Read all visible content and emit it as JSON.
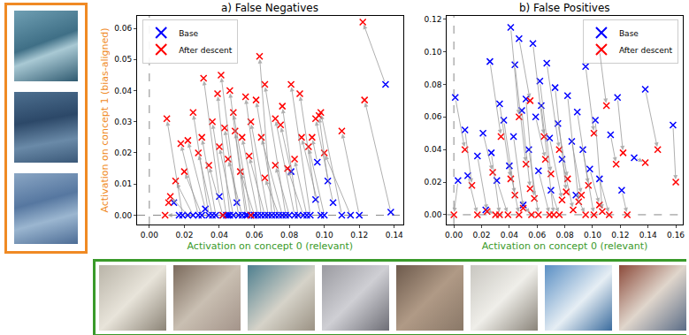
{
  "chart_data": [
    {
      "type": "scatter",
      "title": "a) False Negatives",
      "x_label": "Activation on concept 0 (relevant)",
      "y_label": "Activation on concept 1 (bias-aligned)",
      "xlim": [
        -0.007,
        0.145
      ],
      "ylim": [
        -0.003,
        0.064
      ],
      "xticks": [
        {
          "value": 0,
          "label": "0.00"
        },
        {
          "value": 0.02,
          "label": "0.02"
        },
        {
          "value": 0.04,
          "label": "0.04"
        },
        {
          "value": 0.06,
          "label": "0.06"
        },
        {
          "value": 0.08,
          "label": "0.08"
        },
        {
          "value": 0.1,
          "label": "0.10"
        },
        {
          "value": 0.12,
          "label": "0.12"
        },
        0.14
      ],
      "yticks": [
        {
          "value": 0,
          "label": "0.00"
        },
        0.01,
        0.02,
        0.03,
        0.04,
        0.05,
        0.06
      ],
      "grid": false,
      "legend": "upper left",
      "reference_lines": {
        "x": 0,
        "y": 0
      },
      "series": [
        {
          "name": "Base",
          "color": "#0000ff",
          "marker": "x",
          "x": [
            0.135,
            0.138,
            0.12,
            0.115,
            0.11,
            0.105,
            0.102,
            0.1,
            0.098,
            0.095,
            0.092,
            0.09,
            0.088,
            0.085,
            0.083,
            0.081,
            0.08,
            0.078,
            0.076,
            0.074,
            0.072,
            0.07,
            0.068,
            0.066,
            0.064,
            0.062,
            0.06,
            0.058,
            0.056,
            0.055,
            0.053,
            0.051,
            0.05,
            0.048,
            0.046,
            0.044,
            0.042,
            0.04,
            0.038,
            0.036,
            0.034,
            0.032,
            0.03,
            0.028,
            0.025,
            0.022,
            0.019,
            0.017,
            0.014,
            0.045,
            0.06,
            0.096
          ],
          "y": [
            0.042,
            0.001,
            0,
            0,
            0,
            0.004,
            0.011,
            0,
            0,
            0.005,
            0,
            0,
            0,
            0,
            0,
            0.014,
            0,
            0,
            0,
            0,
            0,
            0,
            0,
            0,
            0,
            0,
            0,
            0,
            0,
            0,
            0,
            0,
            0.004,
            0,
            0,
            0,
            0,
            0.006,
            0,
            0,
            0,
            0.002,
            0,
            0,
            0,
            0,
            0,
            0,
            0.004,
            0,
            0,
            0.017
          ]
        },
        {
          "name": "After descent",
          "color": "#ff0000",
          "marker": "x",
          "x": [
            0.122,
            0.123,
            0.11,
            0.1,
            0.098,
            0.095,
            0.097,
            0.091,
            0.087,
            0.086,
            0.081,
            0.083,
            0.079,
            0.076,
            0.072,
            0.075,
            0.072,
            0.066,
            0.064,
            0.066,
            0.061,
            0.063,
            0.058,
            0.057,
            0.055,
            0.053,
            0.052,
            0.048,
            0.049,
            0.046,
            0.045,
            0.043,
            0.041,
            0.04,
            0.039,
            0.036,
            0.034,
            0.031,
            0.03,
            0.028,
            0.025,
            0.022,
            0.02,
            0.018,
            0.015,
            0.012,
            0.01,
            0.009,
            0.011,
            0.042,
            0.058,
            0.093
          ],
          "y": [
            0.062,
            0.037,
            0.027,
            0.02,
            0.033,
            0.031,
            0.032,
            0.022,
            0.025,
            0.039,
            0.042,
            0.018,
            0.015,
            0.035,
            0.031,
            0.029,
            0.016,
            0.042,
            0.025,
            0.012,
            0.037,
            0.051,
            0.03,
            0.019,
            0.038,
            0.025,
            0.014,
            0.033,
            0.027,
            0.04,
            0.018,
            0.028,
            0.045,
            0.022,
            0.039,
            0.03,
            0.016,
            0.044,
            0.025,
            0.02,
            0.033,
            0.024,
            0.014,
            0.023,
            0.011,
            0.006,
            0.031,
            0,
            0.004,
            0,
            0,
            0.025
          ]
        }
      ]
    },
    {
      "type": "scatter",
      "title": "b) False Positives",
      "x_label": "Activation on concept 0 (relevant)",
      "xlim": [
        -0.005,
        0.165
      ],
      "ylim": [
        -0.006,
        0.122
      ],
      "xticks": [
        {
          "value": 0,
          "label": "0.00"
        },
        {
          "value": 0.02,
          "label": "0.02"
        },
        {
          "value": 0.04,
          "label": "0.04"
        },
        {
          "value": 0.06,
          "label": "0.06"
        },
        {
          "value": 0.08,
          "label": "0.08"
        },
        {
          "value": 0.1,
          "label": "0.10"
        },
        {
          "value": 0.12,
          "label": "0.12"
        },
        0.14,
        0.16
      ],
      "yticks": [
        {
          "value": 0,
          "label": "0.00"
        },
        0.02,
        0.04,
        0.06,
        0.08,
        {
          "value": 0.1,
          "label": "0.10"
        },
        0.12
      ],
      "grid": false,
      "legend": "upper right",
      "reference_lines": {
        "x": 0,
        "y": 0
      },
      "series": [
        {
          "name": "Base",
          "color": "#0000ff",
          "marker": "x",
          "x": [
            0.041,
            0.057,
            0.047,
            0.026,
            0.044,
            0.067,
            0.105,
            0.095,
            0.001,
            0.062,
            0.073,
            0.138,
            0.118,
            0.082,
            0.052,
            0.033,
            0.063,
            0.049,
            0.089,
            0.102,
            0.059,
            0.036,
            0.075,
            0.158,
            0.008,
            0.021,
            0.043,
            0.069,
            0.085,
            0.113,
            0.13,
            0.027,
            0.054,
            0.093,
            0.017,
            0.078,
            0.04,
            0.061,
            0.105,
            0.003,
            0.031,
            0.01,
            0.07,
            0.121,
            0.088,
            0.05,
            0.023,
            0.098
          ],
          "y": [
            0.115,
            0.105,
            0.108,
            0.094,
            0.092,
            0.093,
            0.101,
            0.091,
            0.072,
            0.082,
            0.078,
            0.077,
            0.072,
            0.073,
            0.071,
            0.068,
            0.067,
            0.064,
            0.063,
            0.058,
            0.06,
            0.058,
            0.056,
            0.055,
            0.052,
            0.05,
            0.048,
            0.047,
            0.045,
            0.049,
            0.035,
            0.038,
            0.04,
            0.04,
            0.036,
            0.034,
            0.03,
            0.027,
            0.022,
            0.021,
            0.021,
            0.024,
            0.015,
            0.015,
            0.012,
            0.006,
            0.003,
            0.028
          ]
        },
        {
          "name": "After descent",
          "color": "#ff0000",
          "marker": "x",
          "x": [
            0.047,
            0.065,
            0.055,
            0.034,
            0.052,
            0.076,
            0.11,
            0.101,
            0.008,
            0.07,
            0.081,
            0.147,
            0.122,
            0.09,
            0.058,
            0.041,
            0.072,
            0.055,
            0.097,
            0.107,
            0.066,
            0.044,
            0.082,
            0.16,
            0.013,
            0.028,
            0.05,
            0.078,
            0.092,
            0.117,
            0.138,
            0.033,
            0.061,
            0.101,
            0.024,
            0.086,
            0.047,
            0.069,
            0.112,
            0,
            0.039,
            0.017,
            0.076,
            0.125,
            0.095,
            0.056,
            0.03,
            0.105
          ],
          "y": [
            0.06,
            0.048,
            0.07,
            0.048,
            0.031,
            0.04,
            0.067,
            0.05,
            0.04,
            0.025,
            0.014,
            0.04,
            0.038,
            0.008,
            0.01,
            0.022,
            0,
            0.016,
            0.018,
            0.002,
            0.034,
            0.012,
            0.022,
            0.02,
            0.018,
            0.026,
            0.004,
            0.009,
            0.012,
            0.031,
            0.032,
            0,
            0,
            0,
            0.002,
            0.003,
            0,
            0,
            0,
            0,
            0,
            0,
            0,
            0,
            0,
            0,
            0,
            0.006
          ]
        }
      ]
    }
  ]
}
